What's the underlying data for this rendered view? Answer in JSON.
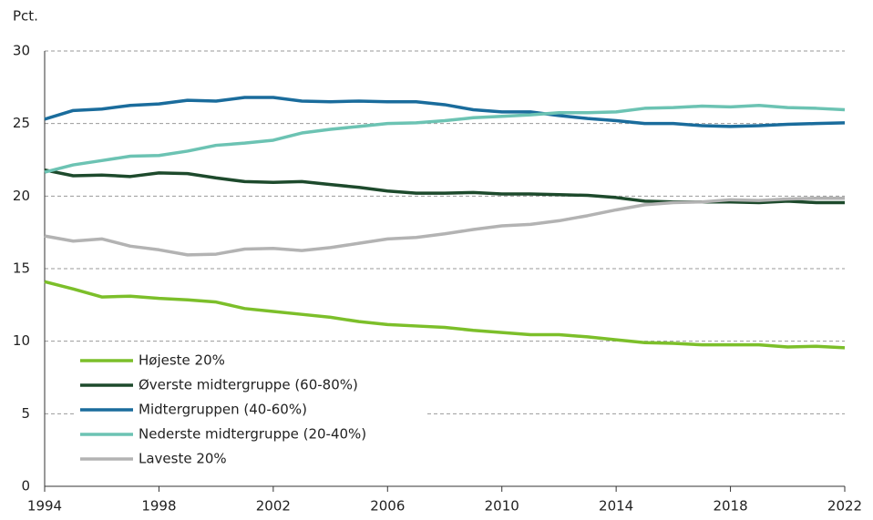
{
  "chart_data": {
    "type": "line",
    "y_label": "Pct.",
    "x": [
      1994,
      1995,
      1996,
      1997,
      1998,
      1999,
      2000,
      2001,
      2002,
      2003,
      2004,
      2005,
      2006,
      2007,
      2008,
      2009,
      2010,
      2011,
      2012,
      2013,
      2014,
      2015,
      2016,
      2017,
      2018,
      2019,
      2020,
      2021,
      2022
    ],
    "xlim": [
      1994,
      2022
    ],
    "xticks": [
      1994,
      1998,
      2002,
      2006,
      2010,
      2014,
      2018,
      2022
    ],
    "ylim": [
      0,
      30
    ],
    "yticks": [
      0,
      5,
      10,
      15,
      20,
      25,
      30
    ],
    "grid": true,
    "legend": "lower left",
    "series": [
      {
        "name": "Højeste 20%",
        "color": "#7cbf2a",
        "values": [
          14.1,
          13.6,
          13.05,
          13.1,
          12.95,
          12.85,
          12.7,
          12.25,
          12.05,
          11.85,
          11.65,
          11.35,
          11.15,
          11.05,
          10.95,
          10.75,
          10.6,
          10.45,
          10.45,
          10.3,
          10.1,
          9.9,
          9.85,
          9.75,
          9.75,
          9.75,
          9.6,
          9.65,
          9.55
        ]
      },
      {
        "name": "Øverste midtergruppe (60-80%)",
        "color": "#1d4a2c",
        "values": [
          21.8,
          21.4,
          21.45,
          21.35,
          21.6,
          21.55,
          21.25,
          21.0,
          20.95,
          21.0,
          20.8,
          20.6,
          20.35,
          20.2,
          20.2,
          20.25,
          20.15,
          20.15,
          20.1,
          20.05,
          19.9,
          19.65,
          19.6,
          19.6,
          19.6,
          19.55,
          19.65,
          19.55,
          19.55
        ]
      },
      {
        "name": "Midtergruppen (40-60%)",
        "color": "#1a6c9c",
        "values": [
          25.3,
          25.9,
          26.0,
          26.25,
          26.35,
          26.6,
          26.55,
          26.8,
          26.8,
          26.55,
          26.5,
          26.55,
          26.5,
          26.5,
          26.3,
          25.95,
          25.8,
          25.8,
          25.55,
          25.35,
          25.2,
          25.0,
          25.0,
          24.85,
          24.8,
          24.85,
          24.95,
          25.0,
          25.05
        ]
      },
      {
        "name": "Nederste midtergruppe (20-40%)",
        "color": "#6cc3b3",
        "values": [
          21.65,
          22.15,
          22.45,
          22.75,
          22.8,
          23.1,
          23.5,
          23.65,
          23.85,
          24.35,
          24.6,
          24.8,
          25.0,
          25.05,
          25.2,
          25.4,
          25.5,
          25.6,
          25.75,
          25.75,
          25.8,
          26.05,
          26.1,
          26.2,
          26.15,
          26.25,
          26.1,
          26.05,
          25.95
        ]
      },
      {
        "name": "Laveste 20%",
        "color": "#b3b3b3",
        "values": [
          17.25,
          16.9,
          17.05,
          16.55,
          16.3,
          15.95,
          16.0,
          16.35,
          16.4,
          16.25,
          16.45,
          16.75,
          17.05,
          17.15,
          17.4,
          17.7,
          17.95,
          18.05,
          18.3,
          18.65,
          19.05,
          19.4,
          19.55,
          19.6,
          19.75,
          19.7,
          19.8,
          19.85,
          19.85
        ]
      }
    ]
  }
}
